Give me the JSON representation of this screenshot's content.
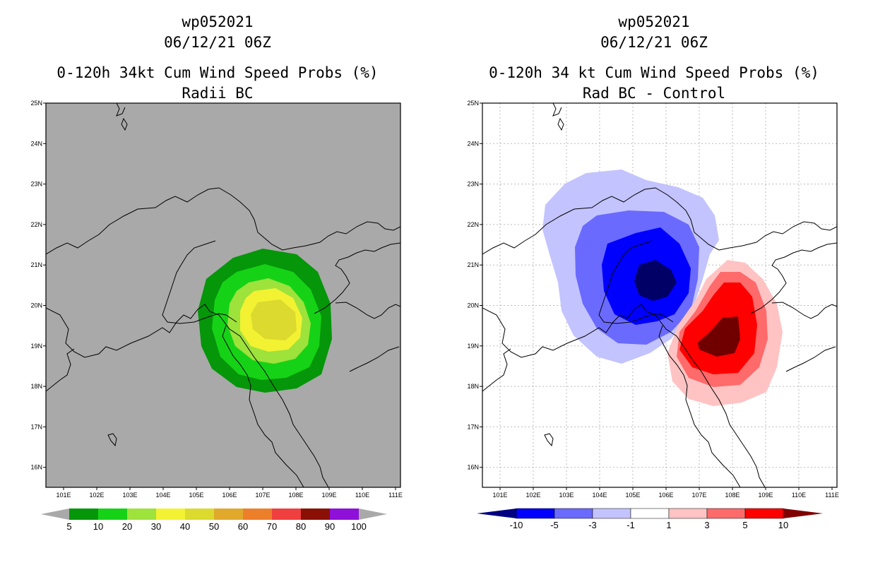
{
  "left_panel": {
    "title1": "wp052021",
    "title2": "06/12/21 06Z",
    "title3": "0-120h 34kt Cum Wind Speed Probs (%)",
    "title4": "Radii BC",
    "background_color": "#a9a9a9",
    "colorbar_labels": [
      "5",
      "10",
      "20",
      "30",
      "40",
      "50",
      "60",
      "70",
      "80",
      "90",
      "100"
    ],
    "colorbar_colors": [
      "#05960a",
      "#16d217",
      "#9ee23c",
      "#f2f232",
      "#dcda2e",
      "#e0a92b",
      "#ee7f2a",
      "#ef3f3e",
      "#8a0f05",
      "#8f10d8"
    ]
  },
  "right_panel": {
    "title1": "wp052021",
    "title2": "06/12/21 06Z",
    "title3": "0-120h 34 kt Cum Wind Speed Probs (%)",
    "title4": "Rad BC - Control",
    "background_color": "#ffffff",
    "colorbar_labels": [
      "-10",
      "-5",
      "-3",
      "-1",
      "1",
      "3",
      "5",
      "10"
    ],
    "colorbar_colors": [
      "#0000ff",
      "#6a6aff",
      "#c3c3ff",
      "#ffffff",
      "#ffc3c3",
      "#ff6a6a",
      "#ff0000"
    ],
    "colorbar_end_low": "#000080",
    "colorbar_end_high": "#800000"
  },
  "axes": {
    "lat_labels": [
      "25N",
      "24N",
      "23N",
      "22N",
      "21N",
      "20N",
      "19N",
      "18N",
      "17N",
      "16N"
    ],
    "lon_labels": [
      "101E",
      "102E",
      "103E",
      "104E",
      "105E",
      "106E",
      "107E",
      "108E",
      "109E",
      "110E",
      "111E"
    ]
  },
  "colors": {
    "neg_dark": "#000066",
    "pos_dark": "#700000"
  }
}
